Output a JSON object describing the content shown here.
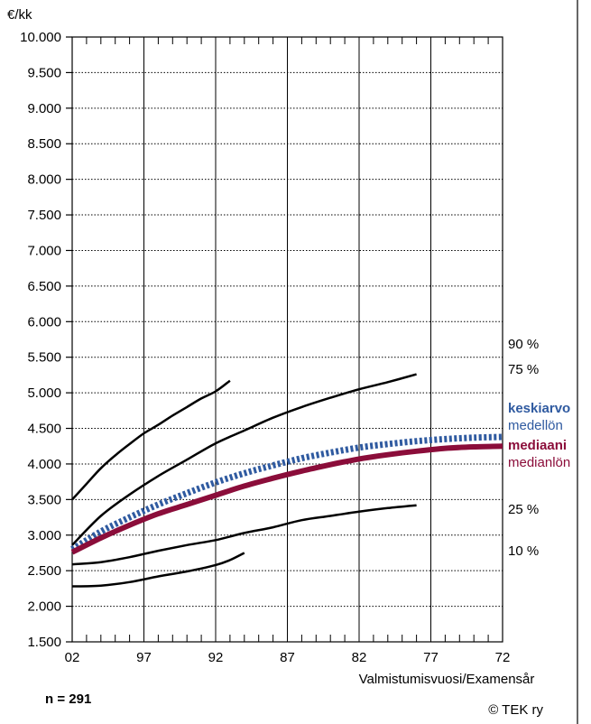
{
  "chart_data": {
    "type": "line",
    "unit_label": "€/kk",
    "xlabel": "Valmistumisvuosi/Examensår",
    "n_label": "n = 291",
    "copyright": "© TEK ry",
    "x_tick_labels": [
      "02",
      "97",
      "92",
      "87",
      "82",
      "77",
      "72"
    ],
    "xlim": [
      2002,
      1972
    ],
    "y_tick_labels": [
      "1.500",
      "2.000",
      "2.500",
      "3.000",
      "3.500",
      "4.000",
      "4.500",
      "5.000",
      "5.500",
      "6.000",
      "6.500",
      "7.000",
      "7.500",
      "8.000",
      "8.500",
      "9.000",
      "9.500",
      "10.000"
    ],
    "ylim": [
      1500,
      10000
    ],
    "grid": {
      "vertical": true,
      "horizontal_dotted": true
    },
    "colors": {
      "mean": "#2f5aa0",
      "median": "#8b0d3a",
      "percentile": "#000000"
    },
    "series": [
      {
        "name": "90 %",
        "color": "#000000",
        "style": "solid",
        "points": [
          [
            2002,
            3500
          ],
          [
            2001,
            3720
          ],
          [
            2000,
            3940
          ],
          [
            1999,
            4120
          ],
          [
            1998,
            4280
          ],
          [
            1997,
            4430
          ],
          [
            1996,
            4550
          ],
          [
            1995,
            4680
          ],
          [
            1994,
            4800
          ],
          [
            1993,
            4920
          ],
          [
            1992,
            5020
          ],
          [
            1991,
            5170
          ]
        ]
      },
      {
        "name": "75 %",
        "color": "#000000",
        "style": "solid",
        "points": [
          [
            2002,
            2860
          ],
          [
            2000,
            3270
          ],
          [
            1998,
            3570
          ],
          [
            1996,
            3830
          ],
          [
            1994,
            4060
          ],
          [
            1992,
            4290
          ],
          [
            1990,
            4470
          ],
          [
            1988,
            4650
          ],
          [
            1986,
            4800
          ],
          [
            1984,
            4930
          ],
          [
            1982,
            5050
          ],
          [
            1980,
            5150
          ],
          [
            1978,
            5260
          ]
        ]
      },
      {
        "name": "keskiarvo medellön",
        "color": "#2f5aa0",
        "style": "dotted",
        "points": [
          [
            2002,
            2800
          ],
          [
            2000,
            3050
          ],
          [
            1998,
            3250
          ],
          [
            1996,
            3430
          ],
          [
            1994,
            3590
          ],
          [
            1992,
            3740
          ],
          [
            1990,
            3870
          ],
          [
            1988,
            3980
          ],
          [
            1986,
            4080
          ],
          [
            1984,
            4160
          ],
          [
            1982,
            4230
          ],
          [
            1980,
            4280
          ],
          [
            1978,
            4320
          ],
          [
            1976,
            4350
          ],
          [
            1974,
            4370
          ],
          [
            1972,
            4380
          ]
        ]
      },
      {
        "name": "mediaani medianlön",
        "color": "#8b0d3a",
        "style": "solid-thick",
        "points": [
          [
            2002,
            2760
          ],
          [
            2000,
            2960
          ],
          [
            1998,
            3140
          ],
          [
            1996,
            3300
          ],
          [
            1994,
            3430
          ],
          [
            1992,
            3560
          ],
          [
            1990,
            3690
          ],
          [
            1988,
            3800
          ],
          [
            1986,
            3900
          ],
          [
            1984,
            3990
          ],
          [
            1982,
            4070
          ],
          [
            1980,
            4130
          ],
          [
            1978,
            4180
          ],
          [
            1976,
            4220
          ],
          [
            1974,
            4240
          ],
          [
            1972,
            4250
          ]
        ]
      },
      {
        "name": "25 %",
        "color": "#000000",
        "style": "solid",
        "points": [
          [
            2002,
            2590
          ],
          [
            2000,
            2620
          ],
          [
            1998,
            2690
          ],
          [
            1996,
            2780
          ],
          [
            1994,
            2860
          ],
          [
            1992,
            2930
          ],
          [
            1990,
            3030
          ],
          [
            1988,
            3110
          ],
          [
            1986,
            3210
          ],
          [
            1984,
            3270
          ],
          [
            1982,
            3330
          ],
          [
            1980,
            3380
          ],
          [
            1978,
            3420
          ]
        ]
      },
      {
        "name": "10 %",
        "color": "#000000",
        "style": "solid",
        "points": [
          [
            2002,
            2280
          ],
          [
            2000,
            2290
          ],
          [
            1998,
            2340
          ],
          [
            1996,
            2420
          ],
          [
            1994,
            2490
          ],
          [
            1992,
            2580
          ],
          [
            1991,
            2650
          ],
          [
            1990,
            2750
          ]
        ]
      }
    ],
    "legend": [
      {
        "text": "90 %",
        "color": "#000000",
        "bold": false
      },
      {
        "text": "75 %",
        "color": "#000000",
        "bold": false
      },
      {
        "text": "keskiarvo",
        "color": "#2f5aa0",
        "bold": true
      },
      {
        "text": "medellön",
        "color": "#2f5aa0",
        "bold": false
      },
      {
        "text": "mediaani",
        "color": "#8b0d3a",
        "bold": true
      },
      {
        "text": "medianlön",
        "color": "#8b0d3a",
        "bold": false
      },
      {
        "text": "25 %",
        "color": "#000000",
        "bold": false
      },
      {
        "text": "10 %",
        "color": "#000000",
        "bold": false
      }
    ]
  }
}
